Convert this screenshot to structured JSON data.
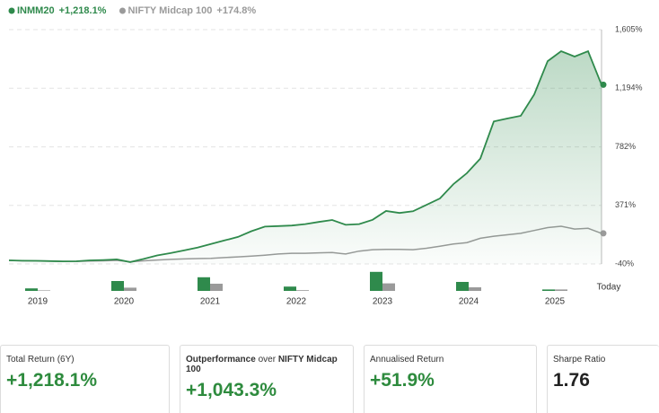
{
  "chart_data": [
    {
      "type": "line",
      "series": [
        {
          "name": "INMM20",
          "color": "#2f8a4c",
          "return": 1218.1,
          "return_label": "+1,218.1%",
          "values": [
            -15,
            -17,
            -18,
            -20,
            -22,
            -21,
            -15,
            -12,
            -8,
            -27,
            -5,
            20,
            36,
            55,
            75,
            100,
            125,
            150,
            190,
            222,
            226,
            230,
            240,
            255,
            269,
            235,
            240,
            270,
            332,
            318,
            330,
            375,
            420,
            520,
            597,
            700,
            960,
            981,
            1000,
            1150,
            1384,
            1454,
            1416,
            1454,
            1218
          ]
        },
        {
          "name": "NIFTY Midcap 100",
          "color": "#9a9a9a",
          "return": 174.8,
          "return_label": "+174.8%",
          "values": [
            -15,
            -18,
            -18,
            -20,
            -22,
            -22,
            -20,
            -18,
            -15,
            -25,
            -18,
            -12,
            -8,
            -5,
            -2,
            0,
            5,
            10,
            15,
            22,
            30,
            35,
            35,
            38,
            40,
            30,
            50,
            60,
            62,
            62,
            60,
            70,
            85,
            100,
            110,
            140,
            155,
            165,
            175,
            195,
            215,
            225,
            205,
            210,
            175
          ]
        }
      ],
      "ylim": [
        -40,
        1605
      ],
      "yticks": [
        {
          "value": -40,
          "label": "-40%"
        },
        {
          "value": 371,
          "label": "371%"
        },
        {
          "value": 782,
          "label": "782%"
        },
        {
          "value": 1194,
          "label": "1,194%"
        },
        {
          "value": 1605,
          "label": "1,605%"
        }
      ],
      "grid": true
    },
    {
      "type": "bar",
      "categories": [
        "2019",
        "2020",
        "2021",
        "2022",
        "2023",
        "2024",
        "2025"
      ],
      "end_label": "Today",
      "series": [
        {
          "color": "#2f8a4c",
          "values": [
            14,
            55,
            76,
            24,
            106,
            50,
            8
          ]
        },
        {
          "color": "#9a9a9a",
          "values": [
            3,
            18,
            40,
            4,
            42,
            20,
            8
          ]
        }
      ],
      "ylim": [
        0,
        110
      ]
    }
  ],
  "cards": [
    {
      "label": "Total Return (6Y)",
      "value": "+1,218.1%"
    },
    {
      "label_parts": [
        "Outperformance",
        " over ",
        "NIFTY Midcap 100"
      ],
      "value": "+1,043.3%"
    },
    {
      "label": "Annualised Return",
      "value": "+51.9%"
    },
    {
      "label": "Sharpe Ratio",
      "value": "1.76"
    }
  ]
}
